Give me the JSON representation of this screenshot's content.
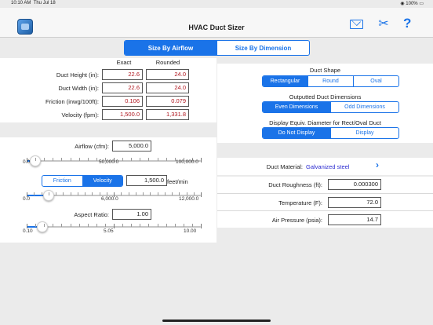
{
  "status": {
    "time": "10:10 AM",
    "date": "Thu Jul 18",
    "battery": "100%"
  },
  "nav": {
    "title": "HVAC Duct Sizer",
    "app_icon": "app-icon",
    "mail_icon": "mail-icon",
    "tools_icon": "tools-icon",
    "help": "?"
  },
  "mode_tabs": [
    {
      "label": "Size By Airflow",
      "active": true
    },
    {
      "label": "Size By Dimension",
      "active": false
    }
  ],
  "results": {
    "col_exact": "Exact",
    "col_rounded": "Rounded",
    "rows": [
      {
        "label": "Duct Height (in):",
        "exact": "22.6",
        "rounded": "24.0"
      },
      {
        "label": "Duct Width (in):",
        "exact": "22.6",
        "rounded": "24.0"
      },
      {
        "label": "Friction (inwg/100ft):",
        "exact": "0.106",
        "rounded": "0.079"
      },
      {
        "label": "Velocity (fpm):",
        "exact": "1,500.0",
        "rounded": "1,331.8"
      }
    ]
  },
  "airflow": {
    "label": "Airflow (cfm):",
    "value": "5,000.0",
    "slider_fraction": 0.05,
    "min_label": "0.0",
    "mid_label": "50,000.0",
    "max_label": "100,000.0"
  },
  "method": {
    "options": [
      {
        "label": "Friction",
        "active": false
      },
      {
        "label": "Velocity",
        "active": true
      }
    ],
    "value": "1,500.0",
    "unit": "feet/min",
    "slider_fraction": 0.125,
    "min_label": "0.0",
    "mid_label": "6,000.0",
    "max_label": "12,000.0"
  },
  "aspect": {
    "label": "Aspect Ratio:",
    "value": "1.00",
    "slider_fraction": 0.091,
    "min_label": "0.10",
    "mid_label": "5.05",
    "max_label": "10.00"
  },
  "duct_shape": {
    "title": "Duct Shape",
    "options": [
      {
        "label": "Rectangular",
        "active": true
      },
      {
        "label": "Round",
        "active": false
      },
      {
        "label": "Oval",
        "active": false
      }
    ]
  },
  "output_dims": {
    "title": "Outputted Duct Dimensions",
    "options": [
      {
        "label": "Even Dimensions",
        "active": true
      },
      {
        "label": "Odd Dimensions",
        "active": false
      }
    ]
  },
  "equiv_diam": {
    "title": "Display Equiv. Diameter for Rect/Oval Duct",
    "options": [
      {
        "label": "Do Not Display",
        "active": true
      },
      {
        "label": "Display",
        "active": false
      }
    ]
  },
  "material": {
    "label": "Duct Material:",
    "value": "Galvanized steel",
    "chevron": "›"
  },
  "params": [
    {
      "label": "Duct Roughness (ft):",
      "value": "0.000300"
    },
    {
      "label": "Temperature (F):",
      "value": "72.0"
    },
    {
      "label": "Air Pressure (psia):",
      "value": "14.7"
    }
  ],
  "colors": {
    "accent": "#1a73e8",
    "result_text": "#b0171f",
    "material_text": "#2a2ad0"
  }
}
